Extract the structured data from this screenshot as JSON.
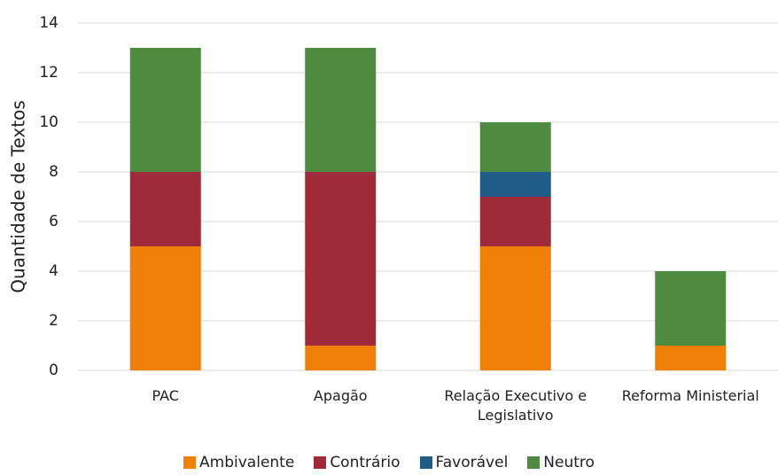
{
  "chart_data": {
    "type": "stacked_bar",
    "y_label": "Quantidade de Textos",
    "categories": [
      "PAC",
      "Apagão",
      "Relação Executivo e Legislativo",
      "Reforma Ministerial"
    ],
    "series": [
      {
        "name": "Ambivalente",
        "color": "#f07f09",
        "values": [
          5,
          1,
          5,
          1
        ]
      },
      {
        "name": "Contrário",
        "color": "#9e2a3a",
        "values": [
          3,
          7,
          2,
          0
        ]
      },
      {
        "name": "Favorável",
        "color": "#1f5c88",
        "values": [
          0,
          0,
          1,
          0
        ]
      },
      {
        "name": "Neutro",
        "color": "#4e8a40",
        "values": [
          5,
          5,
          2,
          3
        ]
      }
    ],
    "ylim": [
      0,
      14
    ],
    "yticks": [
      0,
      2,
      4,
      6,
      8,
      10,
      12,
      14
    ],
    "grid": true,
    "legend": "bottom"
  }
}
